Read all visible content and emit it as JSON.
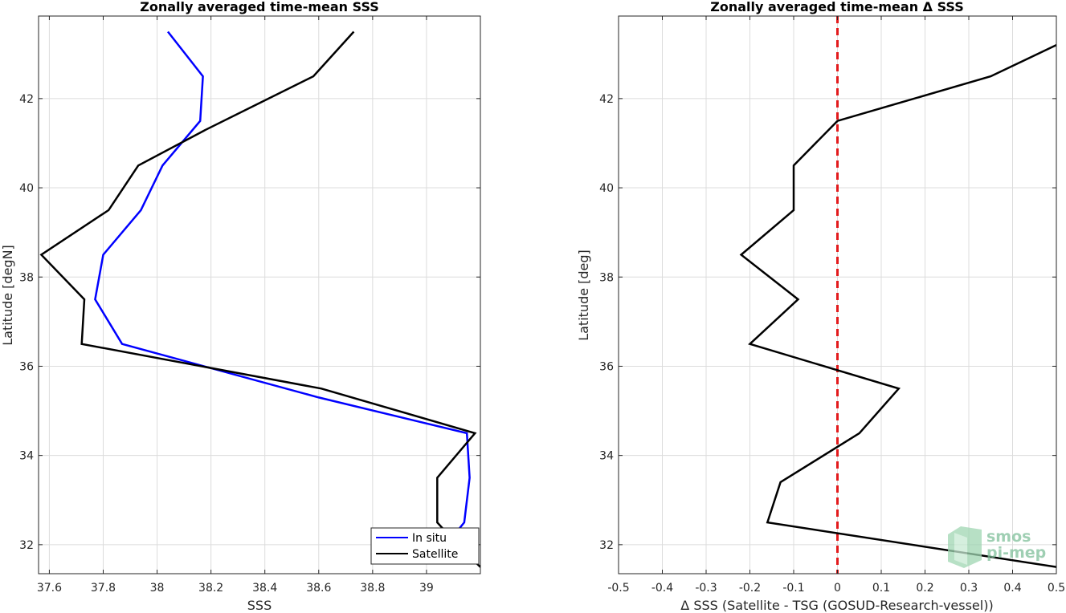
{
  "chart_data": [
    {
      "type": "line",
      "title": "Zonally averaged time-mean SSS",
      "xlabel": "SSS",
      "ylabel": "Latitude [degN]",
      "xlim": [
        37.56,
        39.2
      ],
      "ylim": [
        31.35,
        43.85
      ],
      "xticks": [
        37.6,
        37.8,
        38,
        38.2,
        38.4,
        38.6,
        38.8,
        39
      ],
      "xtick_labels": [
        "37.6",
        "37.8",
        "38",
        "38.2",
        "38.4",
        "38.6",
        "38.8",
        "39"
      ],
      "yticks": [
        32,
        34,
        36,
        38,
        40,
        42
      ],
      "ytick_labels": [
        "32",
        "34",
        "36",
        "38",
        "40",
        "42"
      ],
      "grid": true,
      "legend_position": "bottom-right",
      "series": [
        {
          "name": "In situ",
          "color": "#0000ff",
          "points": [
            [
              38.04,
              43.5
            ],
            [
              38.17,
              42.5
            ],
            [
              38.16,
              41.5
            ],
            [
              38.02,
              40.5
            ],
            [
              37.94,
              39.5
            ],
            [
              37.8,
              38.5
            ],
            [
              37.77,
              37.5
            ],
            [
              37.87,
              36.5
            ],
            [
              38.6,
              35.3
            ],
            [
              39.15,
              34.5
            ],
            [
              39.16,
              33.5
            ],
            [
              39.14,
              32.5
            ],
            [
              39.1,
              32.2
            ]
          ]
        },
        {
          "name": "Satellite",
          "color": "#000000",
          "points": [
            [
              38.73,
              43.5
            ],
            [
              38.58,
              42.5
            ],
            [
              38.18,
              41.3
            ],
            [
              37.93,
              40.5
            ],
            [
              37.82,
              39.5
            ],
            [
              37.57,
              38.5
            ],
            [
              37.73,
              37.5
            ],
            [
              37.72,
              36.5
            ],
            [
              38.61,
              35.5
            ],
            [
              39.18,
              34.5
            ],
            [
              39.04,
              33.5
            ],
            [
              39.04,
              32.5
            ],
            [
              39.1,
              32.1
            ],
            [
              39.2,
              31.5
            ]
          ]
        }
      ]
    },
    {
      "type": "line",
      "title": "Zonally averaged time-mean Δ SSS",
      "xlabel": "Δ SSS (Satellite - TSG (GOSUD-Research-vessel))",
      "ylabel": "Latitude [deg]",
      "xlim": [
        -0.5,
        0.5
      ],
      "ylim": [
        31.35,
        43.85
      ],
      "xticks": [
        -0.5,
        -0.4,
        -0.3,
        -0.2,
        -0.1,
        0,
        0.1,
        0.2,
        0.3,
        0.4,
        0.5
      ],
      "xtick_labels": [
        "-0.5",
        "-0.4",
        "-0.3",
        "-0.2",
        "-0.1",
        "0",
        "0.1",
        "0.2",
        "0.3",
        "0.4",
        "0.5"
      ],
      "yticks": [
        32,
        34,
        36,
        38,
        40,
        42
      ],
      "ytick_labels": [
        "32",
        "34",
        "36",
        "38",
        "40",
        "42"
      ],
      "grid": true,
      "reference_line": {
        "x": 0,
        "color": "#e31a1c",
        "style": "dashed"
      },
      "series": [
        {
          "color": "#000000",
          "points": [
            [
              0.5,
              43.2
            ],
            [
              0.35,
              42.5
            ],
            [
              0.0,
              41.5
            ],
            [
              -0.1,
              40.5
            ],
            [
              -0.1,
              39.5
            ],
            [
              -0.22,
              38.5
            ],
            [
              -0.09,
              37.5
            ],
            [
              -0.2,
              36.5
            ],
            [
              0.14,
              35.5
            ],
            [
              0.05,
              34.5
            ],
            [
              -0.13,
              33.4
            ],
            [
              -0.16,
              32.5
            ],
            [
              0.5,
              31.5
            ]
          ]
        }
      ]
    }
  ],
  "logo": {
    "line1": "smos",
    "line2": "pi-mep",
    "color": "#7fbf9a"
  }
}
